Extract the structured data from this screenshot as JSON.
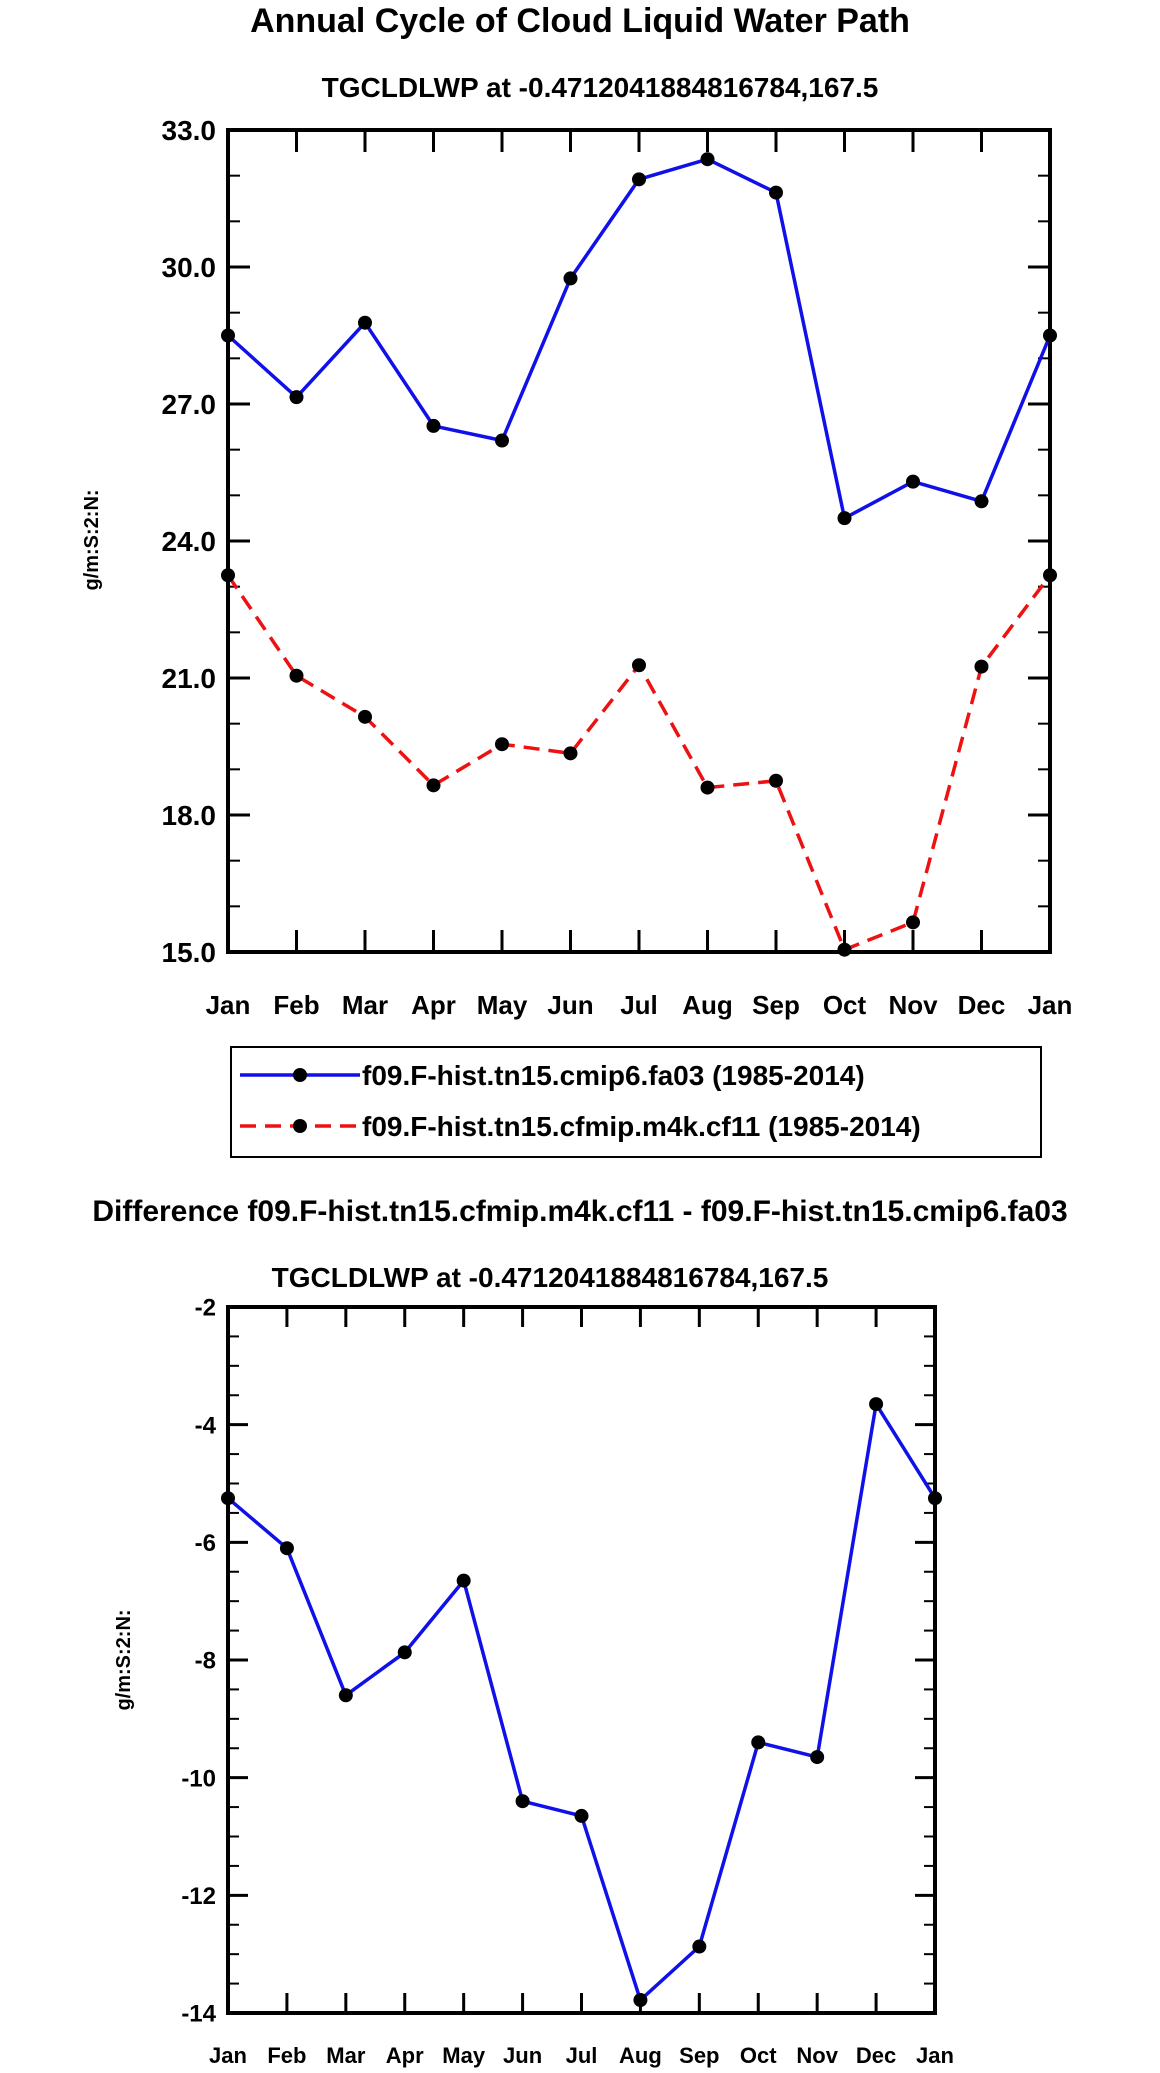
{
  "chart_data": [
    {
      "type": "line",
      "title": "Annual Cycle of Cloud Liquid Water Path",
      "subtitle": "TGCLDLWP at -0.4712041884816784,167.5",
      "xlabel": "",
      "ylabel": "g/m:S:2:N:",
      "categories": [
        "Jan",
        "Feb",
        "Mar",
        "Apr",
        "May",
        "Jun",
        "Jul",
        "Aug",
        "Sep",
        "Oct",
        "Nov",
        "Dec",
        "Jan"
      ],
      "ylim": [
        15.0,
        33.0
      ],
      "yticks": [
        15.0,
        18.0,
        21.0,
        24.0,
        27.0,
        30.0,
        33.0
      ],
      "ytick_labels": [
        "15.0",
        "18.0",
        "21.0",
        "24.0",
        "27.0",
        "30.0",
        "33.0"
      ],
      "series": [
        {
          "name": "f09.F-hist.tn15.cmip6.fa03 (1985-2014)",
          "color": "#1010e8",
          "dash": "solid",
          "values": [
            28.5,
            27.15,
            28.78,
            26.52,
            26.2,
            29.75,
            31.92,
            32.36,
            31.63,
            24.5,
            25.3,
            24.87,
            28.5
          ]
        },
        {
          "name": "f09.F-hist.tn15.cfmip.m4k.cf11 (1985-2014)",
          "color": "#ee1111",
          "dash": "dashed",
          "values": [
            23.25,
            21.05,
            20.15,
            18.65,
            19.55,
            19.35,
            21.28,
            18.6,
            18.75,
            15.05,
            15.65,
            21.25,
            23.25
          ]
        }
      ],
      "legend": "bottom"
    },
    {
      "type": "line",
      "title": "Difference f09.F-hist.tn15.cfmip.m4k.cf11 - f09.F-hist.tn15.cmip6.fa03",
      "subtitle": "TGCLDLWP at -0.4712041884816784,167.5",
      "xlabel": "",
      "ylabel": "g/m:S:2:N:",
      "categories": [
        "Jan",
        "Feb",
        "Mar",
        "Apr",
        "May",
        "Jun",
        "Jul",
        "Aug",
        "Sep",
        "Oct",
        "Nov",
        "Dec",
        "Jan"
      ],
      "ylim": [
        -14,
        -2
      ],
      "yticks": [
        -14,
        -12,
        -10,
        -8,
        -6,
        -4,
        -2
      ],
      "ytick_labels": [
        "-14",
        "-12",
        "-10",
        "-8",
        "-6",
        "-4",
        "-2"
      ],
      "series": [
        {
          "name": "Difference",
          "color": "#1010e8",
          "dash": "solid",
          "values": [
            -5.25,
            -6.1,
            -8.6,
            -7.87,
            -6.65,
            -10.4,
            -10.65,
            -13.78,
            -12.87,
            -9.4,
            -9.65,
            -3.65,
            -5.25
          ]
        }
      ]
    }
  ]
}
